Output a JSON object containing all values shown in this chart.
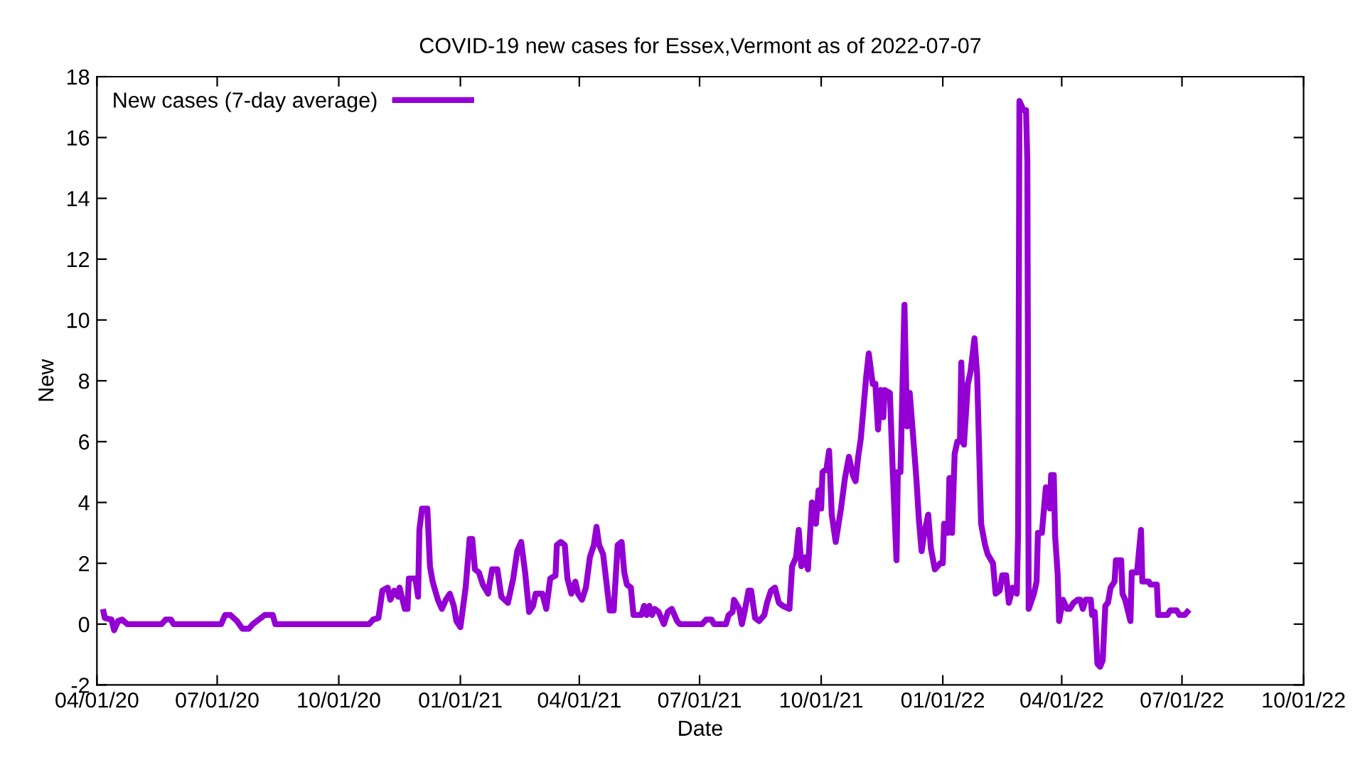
{
  "chart_data": {
    "type": "line",
    "title": "COVID-19 new cases for Essex,Vermont as of 2022-07-07",
    "xlabel": "Date",
    "ylabel": "New",
    "xlim": [
      "2020-04-01",
      "2022-10-01"
    ],
    "xticks": [
      {
        "value": "2020-04-01",
        "label": "04/01/20"
      },
      {
        "value": "2020-07-01",
        "label": "07/01/20"
      },
      {
        "value": "2020-10-01",
        "label": "10/01/20"
      },
      {
        "value": "2021-01-01",
        "label": "01/01/21"
      },
      {
        "value": "2021-04-01",
        "label": "04/01/21"
      },
      {
        "value": "2021-07-01",
        "label": "07/01/21"
      },
      {
        "value": "2021-10-01",
        "label": "10/01/21"
      },
      {
        "value": "2022-01-01",
        "label": "01/01/22"
      },
      {
        "value": "2022-04-01",
        "label": "04/01/22"
      },
      {
        "value": "2022-07-01",
        "label": "07/01/22"
      },
      {
        "value": "2022-10-01",
        "label": "10/01/22"
      }
    ],
    "ylim": [
      -2,
      18
    ],
    "yticks": [
      -2,
      0,
      2,
      4,
      6,
      8,
      10,
      12,
      14,
      16,
      18
    ],
    "grid": false,
    "legend": "top left",
    "marker": "none",
    "line_style": "solid",
    "series": [
      {
        "name": "New cases (7-day average)",
        "color": "#9400d3",
        "x": [
          "2020-04-06",
          "2020-04-07",
          "2020-04-12",
          "2020-04-14",
          "2020-04-17",
          "2020-04-20",
          "2020-04-24",
          "2020-05-20",
          "2020-05-23",
          "2020-05-27",
          "2020-05-29",
          "2020-07-04",
          "2020-07-07",
          "2020-07-11",
          "2020-07-16",
          "2020-07-20",
          "2020-07-25",
          "2020-07-28",
          "2020-08-06",
          "2020-08-12",
          "2020-08-14",
          "2020-10-24",
          "2020-10-27",
          "2020-10-31",
          "2020-11-03",
          "2020-11-07",
          "2020-11-09",
          "2020-11-12",
          "2020-11-15",
          "2020-11-16",
          "2020-11-20",
          "2020-11-22",
          "2020-11-23",
          "2020-11-28",
          "2020-11-30",
          "2020-12-01",
          "2020-12-03",
          "2020-12-07",
          "2020-12-09",
          "2020-12-11",
          "2020-12-15",
          "2020-12-18",
          "2020-12-21",
          "2020-12-24",
          "2020-12-27",
          "2020-12-29",
          "2021-01-01",
          "2021-01-05",
          "2021-01-08",
          "2021-01-10",
          "2021-01-12",
          "2021-01-15",
          "2021-01-18",
          "2021-01-22",
          "2021-01-23",
          "2021-01-25",
          "2021-01-29",
          "2021-02-01",
          "2021-02-06",
          "2021-02-10",
          "2021-02-13",
          "2021-02-16",
          "2021-02-19",
          "2021-02-22",
          "2021-02-25",
          "2021-02-27",
          "2021-03-04",
          "2021-03-07",
          "2021-03-10",
          "2021-03-14",
          "2021-03-15",
          "2021-03-18",
          "2021-03-21",
          "2021-03-23",
          "2021-03-26",
          "2021-03-29",
          "2021-03-31",
          "2021-04-03",
          "2021-04-06",
          "2021-04-09",
          "2021-04-12",
          "2021-04-14",
          "2021-04-16",
          "2021-04-19",
          "2021-04-22",
          "2021-04-24",
          "2021-04-27",
          "2021-04-30",
          "2021-05-03",
          "2021-05-05",
          "2021-05-07",
          "2021-05-10",
          "2021-05-12",
          "2021-05-18",
          "2021-05-20",
          "2021-05-22",
          "2021-05-24",
          "2021-05-26",
          "2021-05-28",
          "2021-05-31",
          "2021-06-04",
          "2021-06-07",
          "2021-06-10",
          "2021-06-14",
          "2021-06-16",
          "2021-07-03",
          "2021-07-06",
          "2021-07-10",
          "2021-07-12",
          "2021-07-21",
          "2021-07-23",
          "2021-07-26",
          "2021-07-27",
          "2021-07-31",
          "2021-08-02",
          "2021-08-04",
          "2021-08-07",
          "2021-08-09",
          "2021-08-12",
          "2021-08-15",
          "2021-08-19",
          "2021-08-21",
          "2021-08-24",
          "2021-08-27",
          "2021-08-30",
          "2021-09-02",
          "2021-09-07",
          "2021-09-09",
          "2021-09-12",
          "2021-09-14",
          "2021-09-16",
          "2021-09-19",
          "2021-09-21",
          "2021-09-24",
          "2021-09-27",
          "2021-09-29",
          "2021-10-01",
          "2021-10-02",
          "2021-10-05",
          "2021-10-07",
          "2021-10-09",
          "2021-10-12",
          "2021-10-16",
          "2021-10-19",
          "2021-10-22",
          "2021-10-25",
          "2021-10-27",
          "2021-10-29",
          "2021-10-31",
          "2021-11-04",
          "2021-11-06",
          "2021-11-09",
          "2021-11-11",
          "2021-11-13",
          "2021-11-15",
          "2021-11-17",
          "2021-11-18",
          "2021-11-22",
          "2021-11-24",
          "2021-11-27",
          "2021-11-28",
          "2021-11-30",
          "2021-12-03",
          "2021-12-05",
          "2021-12-07",
          "2021-12-09",
          "2021-12-12",
          "2021-12-14",
          "2021-12-16",
          "2021-12-18",
          "2021-12-21",
          "2021-12-23",
          "2021-12-26",
          "2021-12-30",
          "2022-01-01",
          "2022-01-02",
          "2022-01-05",
          "2022-01-06",
          "2022-01-08",
          "2022-01-10",
          "2022-01-12",
          "2022-01-14",
          "2022-01-15",
          "2022-01-17",
          "2022-01-20",
          "2022-01-22",
          "2022-01-25",
          "2022-01-27",
          "2022-01-30",
          "2022-02-02",
          "2022-02-04",
          "2022-02-08",
          "2022-02-10",
          "2022-02-13",
          "2022-02-15",
          "2022-02-18",
          "2022-02-20",
          "2022-02-23",
          "2022-02-26",
          "2022-02-27",
          "2022-02-28",
          "2022-03-03",
          "2022-03-05",
          "2022-03-06",
          "2022-03-07",
          "2022-03-11",
          "2022-03-13",
          "2022-03-14",
          "2022-03-17",
          "2022-03-20",
          "2022-03-23",
          "2022-03-24",
          "2022-03-26",
          "2022-03-27",
          "2022-03-29",
          "2022-03-30",
          "2022-04-02",
          "2022-04-05",
          "2022-04-07",
          "2022-04-10",
          "2022-04-13",
          "2022-04-15",
          "2022-04-17",
          "2022-04-19",
          "2022-04-23",
          "2022-04-24",
          "2022-04-26",
          "2022-04-28",
          "2022-04-30",
          "2022-05-02",
          "2022-05-04",
          "2022-05-06",
          "2022-05-08",
          "2022-05-11",
          "2022-05-12",
          "2022-05-16",
          "2022-05-17",
          "2022-05-19",
          "2022-05-23",
          "2022-05-24",
          "2022-05-28",
          "2022-05-31",
          "2022-06-01",
          "2022-06-06",
          "2022-06-07",
          "2022-06-12",
          "2022-06-13",
          "2022-06-20",
          "2022-06-22",
          "2022-06-27",
          "2022-06-29",
          "2022-07-03",
          "2022-07-05"
        ],
        "values": [
          0.4,
          0.2,
          0.15,
          -0.2,
          0.1,
          0.15,
          0,
          0,
          0.15,
          0.15,
          0,
          0,
          0.3,
          0.3,
          0.1,
          -0.15,
          -0.15,
          0,
          0.3,
          0.3,
          0,
          0,
          0.15,
          0.2,
          1.1,
          1.2,
          0.8,
          1.1,
          0.9,
          1.2,
          0.5,
          0.5,
          1.5,
          1.5,
          0.9,
          3.1,
          3.8,
          3.8,
          1.9,
          1.4,
          0.8,
          0.5,
          0.8,
          1.0,
          0.6,
          0.1,
          -0.1,
          1.2,
          2.8,
          2.8,
          1.8,
          1.7,
          1.3,
          1.0,
          1.3,
          1.8,
          1.8,
          0.9,
          0.7,
          1.5,
          2.4,
          2.7,
          1.7,
          0.4,
          0.6,
          1.0,
          1.0,
          0.5,
          1.5,
          1.6,
          2.6,
          2.7,
          2.6,
          1.5,
          1.0,
          1.4,
          1.0,
          0.8,
          1.2,
          2.2,
          2.6,
          3.2,
          2.6,
          2.3,
          1.2,
          0.45,
          0.45,
          2.6,
          2.7,
          1.7,
          1.3,
          1.2,
          0.3,
          0.3,
          0.6,
          0.3,
          0.6,
          0.3,
          0.5,
          0.4,
          0.0,
          0.4,
          0.5,
          0.1,
          0,
          0,
          0.15,
          0.15,
          0,
          0,
          0.3,
          0.4,
          0.8,
          0.5,
          0,
          0.4,
          1.1,
          1.1,
          0.2,
          0.1,
          0.3,
          0.7,
          1.1,
          1.2,
          0.7,
          0.6,
          0.5,
          1.9,
          2.2,
          3.1,
          1.9,
          2.2,
          1.8,
          4.0,
          3.3,
          4.4,
          3.8,
          5.0,
          5.1,
          5.7,
          3.6,
          2.7,
          3.8,
          4.8,
          5.5,
          4.9,
          4.7,
          5.5,
          6.1,
          8.1,
          8.9,
          7.9,
          7.9,
          6.4,
          7.7,
          6.8,
          7.7,
          7.6,
          5.2,
          2.1,
          5.0,
          5.0,
          10.5,
          6.5,
          7.6,
          6.5,
          4.8,
          3.4,
          2.4,
          3.0,
          3.6,
          2.5,
          1.8,
          2.0,
          2.0,
          3.3,
          3.0,
          4.8,
          3.0,
          5.6,
          6.0,
          6.0,
          8.6,
          5.9,
          7.9,
          8.3,
          9.4,
          8.2,
          3.3,
          2.6,
          2.3,
          2.0,
          1.0,
          1.1,
          1.6,
          1.6,
          0.7,
          1.2,
          1.0,
          3.0,
          17.2,
          16.9,
          16.9,
          15.2,
          0.5,
          1.0,
          1.4,
          3.0,
          3.0,
          4.5,
          3.8,
          4.9,
          4.9,
          2.9,
          1.6,
          0.1,
          0.8,
          0.5,
          0.5,
          0.7,
          0.8,
          0.8,
          0.5,
          0.8,
          0.8,
          0.3,
          0.4,
          -1.3,
          -1.4,
          -1.2,
          0.6,
          0.7,
          1.2,
          1.4,
          2.1,
          2.1,
          1.0,
          0.8,
          0.1,
          1.7,
          1.7,
          3.1,
          1.4,
          1.4,
          1.3,
          1.3,
          0.3,
          0.3,
          0.45,
          0.45,
          0.3,
          0.3,
          0.4
        ]
      }
    ]
  }
}
